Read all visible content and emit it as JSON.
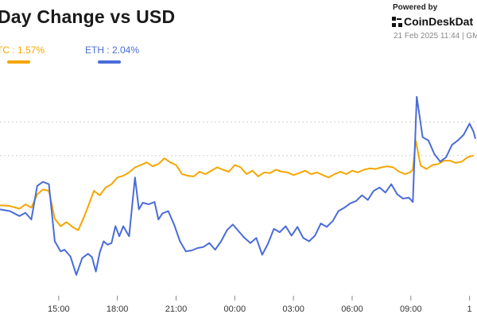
{
  "header": {
    "title": "Day Change vs USD",
    "powered_by": "Powered by",
    "brand": "CoinDeskDat",
    "timestamp": "21 Feb 2025 11:44 | GM"
  },
  "legend": {
    "btc_label": "TC : 1.57%",
    "eth_label": "ETH : 2.04%"
  },
  "colors": {
    "btc": "#f5a600",
    "eth": "#4a6cd8",
    "grid": "#d0d0d0"
  },
  "chart_data": {
    "type": "line",
    "title": "Day Change vs USD",
    "xlabel": "",
    "ylabel": "",
    "grid": true,
    "legend_placement": "top-left",
    "x_ticks": [
      "15:00",
      "18:00",
      "21:00",
      "00:00",
      "03:00",
      "06:00",
      "09:00",
      "1"
    ],
    "x_tick_hours": [
      15,
      18,
      21,
      24,
      27,
      30,
      33,
      36
    ],
    "x_range_hours": [
      12.0,
      36.3
    ],
    "ylim": [
      -3.0,
      4.0
    ],
    "y_gridlines": [
      1.5,
      2.5
    ],
    "series": [
      {
        "name": "TC : 1.57%",
        "color": "#f5a600",
        "x": [
          12.0,
          12.5,
          13.0,
          13.3,
          13.6,
          13.9,
          14.2,
          14.5,
          14.8,
          15.1,
          15.4,
          15.7,
          16.0,
          16.3,
          16.5,
          16.8,
          17.1,
          17.4,
          17.7,
          18.0,
          18.3,
          18.6,
          18.9,
          19.2,
          19.5,
          19.8,
          20.1,
          20.4,
          20.7,
          21.0,
          21.3,
          21.6,
          21.9,
          22.2,
          22.5,
          22.8,
          23.1,
          23.4,
          23.7,
          24.0,
          24.3,
          24.6,
          24.9,
          25.2,
          25.5,
          25.8,
          26.1,
          26.4,
          26.7,
          27.0,
          27.3,
          27.6,
          27.9,
          28.2,
          28.5,
          28.8,
          29.1,
          29.4,
          29.7,
          30.0,
          30.3,
          30.6,
          30.9,
          31.2,
          31.5,
          31.8,
          32.1,
          32.4,
          32.7,
          32.95,
          33.1,
          33.25,
          33.5,
          33.8,
          34.1,
          34.4,
          34.7,
          35.0,
          35.3,
          35.6,
          35.9,
          36.2
        ],
        "values": [
          0.02,
          0.0,
          -0.08,
          0.05,
          -0.05,
          0.35,
          0.49,
          0.45,
          -0.38,
          -0.6,
          -0.48,
          -0.62,
          -0.72,
          -0.32,
          -0.02,
          0.45,
          0.32,
          0.55,
          0.65,
          0.85,
          0.9,
          1.0,
          1.15,
          1.22,
          1.3,
          1.18,
          1.25,
          1.42,
          1.3,
          1.22,
          0.95,
          0.9,
          0.88,
          1.02,
          0.95,
          1.05,
          1.15,
          1.08,
          1.02,
          1.22,
          1.15,
          0.95,
          1.05,
          0.88,
          1.0,
          0.98,
          1.08,
          1.02,
          1.0,
          0.92,
          0.98,
          1.05,
          0.95,
          1.0,
          0.92,
          0.85,
          0.95,
          1.02,
          0.95,
          1.05,
          1.0,
          1.08,
          1.12,
          1.1,
          1.15,
          1.18,
          1.15,
          1.02,
          0.95,
          1.0,
          1.08,
          1.95,
          1.2,
          1.1,
          1.22,
          1.25,
          1.35,
          1.35,
          1.28,
          1.32,
          1.45,
          1.5
        ]
      },
      {
        "name": "ETH : 2.04%",
        "color": "#4a6cd8",
        "x": [
          12.0,
          12.5,
          13.0,
          13.3,
          13.6,
          13.9,
          14.2,
          14.5,
          14.8,
          15.1,
          15.3,
          15.6,
          15.9,
          16.2,
          16.5,
          16.7,
          16.9,
          17.1,
          17.3,
          17.5,
          17.7,
          17.9,
          18.1,
          18.3,
          18.6,
          18.9,
          19.1,
          19.3,
          19.6,
          19.9,
          20.1,
          20.3,
          20.6,
          20.9,
          21.2,
          21.5,
          21.8,
          22.1,
          22.4,
          22.7,
          23.0,
          23.3,
          23.6,
          23.9,
          24.2,
          24.5,
          24.8,
          25.1,
          25.4,
          25.7,
          26.0,
          26.3,
          26.6,
          26.9,
          27.2,
          27.5,
          27.8,
          28.1,
          28.4,
          28.7,
          29.0,
          29.3,
          29.6,
          29.9,
          30.2,
          30.5,
          30.8,
          31.1,
          31.4,
          31.7,
          32.0,
          32.3,
          32.6,
          32.9,
          33.1,
          33.3,
          33.6,
          33.9,
          34.2,
          34.5,
          34.8,
          35.1,
          35.4,
          35.7,
          36.0,
          36.2,
          36.3
        ],
        "values": [
          -0.1,
          -0.15,
          -0.3,
          -0.2,
          -0.4,
          0.6,
          0.72,
          0.65,
          -1.05,
          -1.35,
          -1.3,
          -1.5,
          -2.05,
          -1.55,
          -1.42,
          -1.52,
          -1.95,
          -1.38,
          -1.05,
          -1.15,
          -1.1,
          -0.6,
          -0.9,
          -0.6,
          -0.9,
          0.85,
          -0.1,
          0.1,
          0.05,
          0.12,
          -0.4,
          -0.22,
          -0.15,
          -0.55,
          -1.05,
          -1.35,
          -1.32,
          -1.25,
          -1.22,
          -1.1,
          -1.3,
          -1.05,
          -0.72,
          -0.55,
          -0.75,
          -0.95,
          -1.1,
          -0.95,
          -1.45,
          -1.12,
          -0.68,
          -0.78,
          -0.6,
          -0.88,
          -0.62,
          -0.95,
          -1.05,
          -0.88,
          -0.52,
          -0.62,
          -0.45,
          -0.15,
          -0.05,
          0.08,
          0.15,
          0.32,
          0.18,
          0.45,
          0.55,
          0.4,
          0.65,
          0.35,
          0.22,
          0.25,
          0.12,
          3.25,
          2.05,
          1.95,
          1.55,
          1.32,
          1.45,
          1.82,
          1.95,
          2.12,
          2.45,
          2.22,
          2.0
        ]
      }
    ]
  }
}
